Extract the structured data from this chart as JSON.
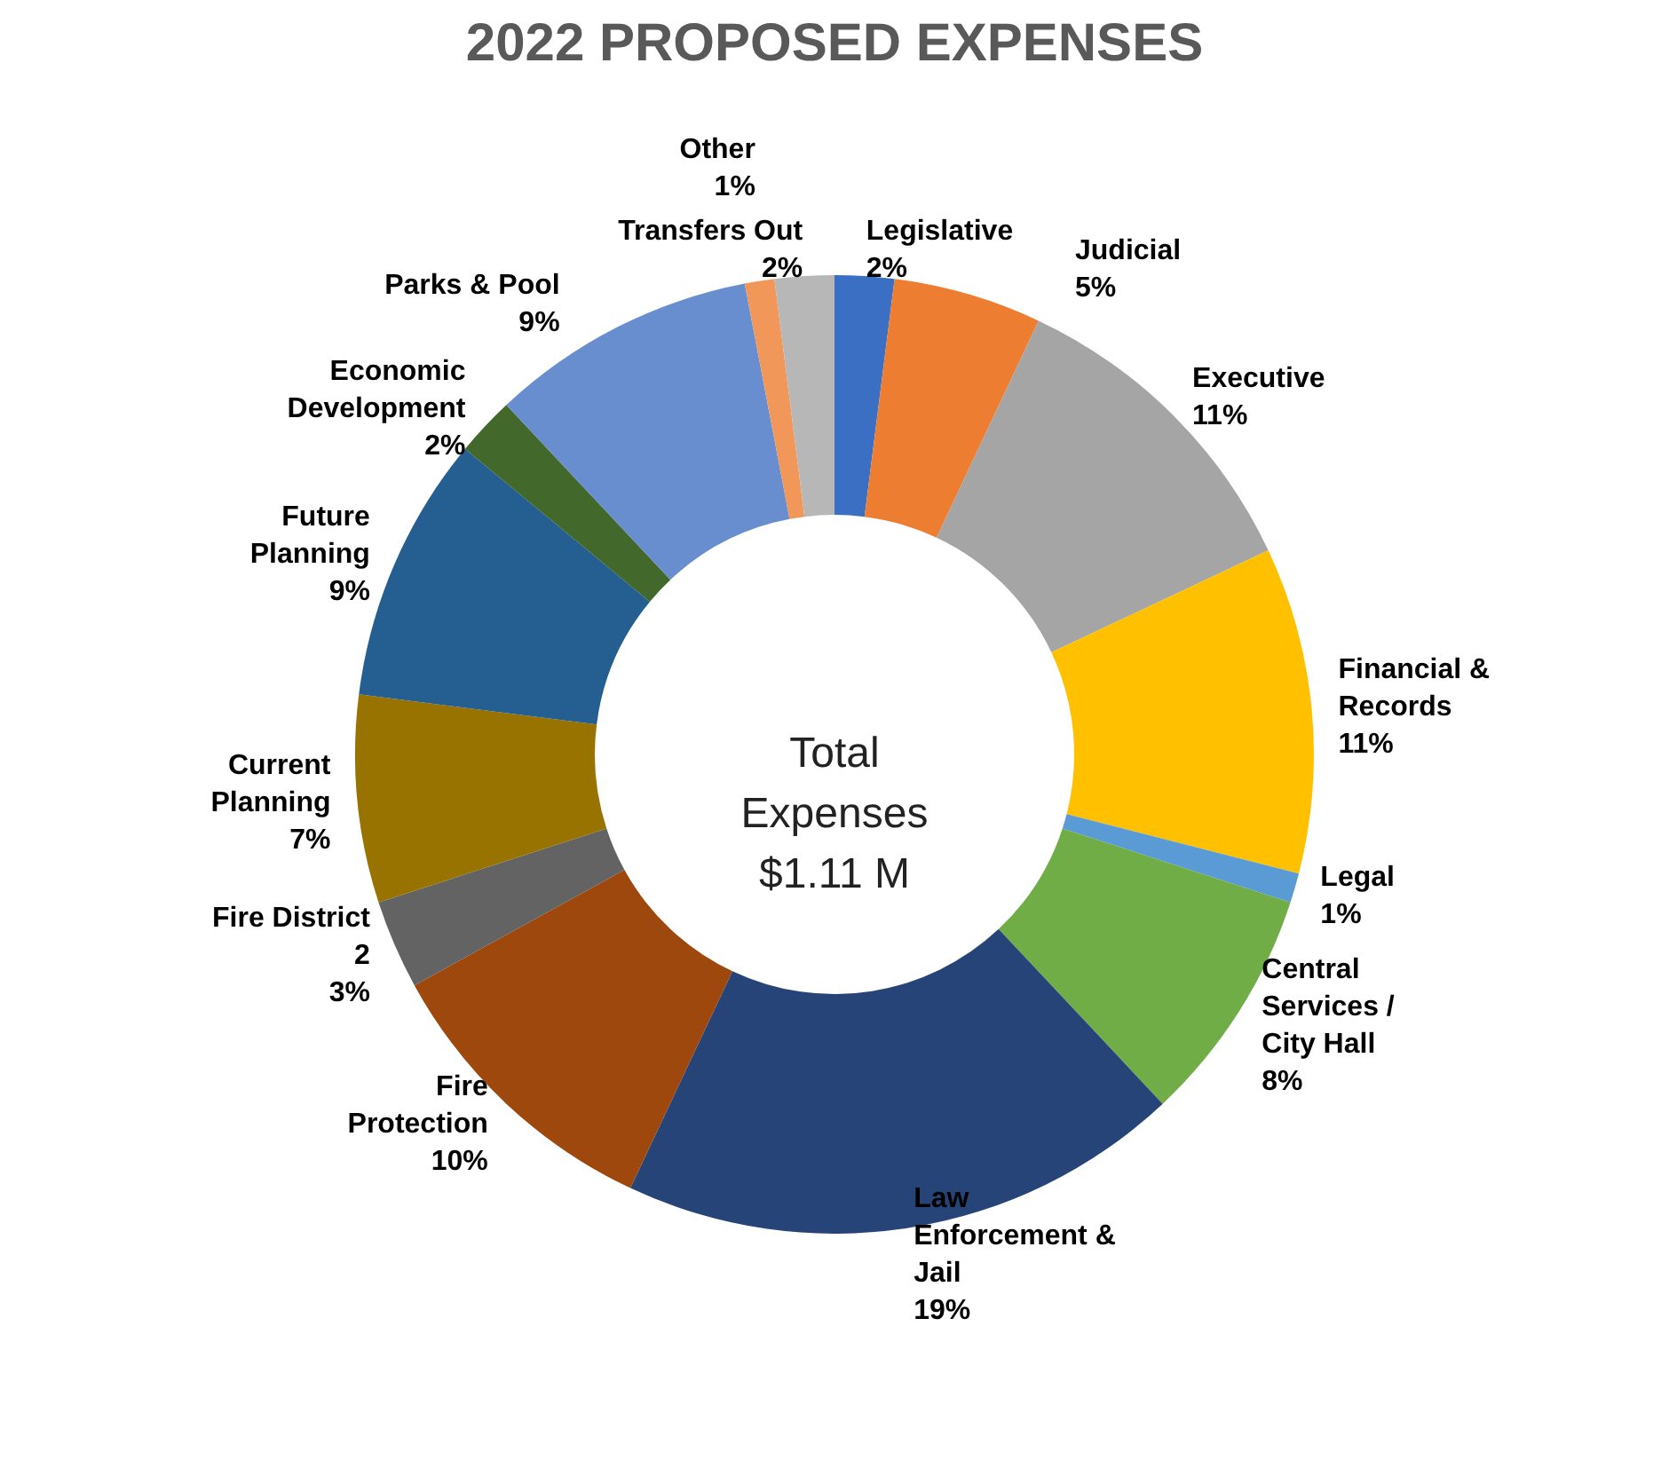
{
  "chart_data": {
    "type": "donut",
    "title": "2022 PROPOSED EXPENSES",
    "categories": [
      "Legislative",
      "Judicial",
      "Executive",
      "Financial & Records",
      "Legal",
      "Central Services / City Hall",
      "Law Enforcement & Jail",
      "Fire Protection",
      "Fire District 2",
      "Current Planning",
      "Future Planning",
      "Economic Development",
      "Parks & Pool",
      "Other",
      "Transfers Out"
    ],
    "values": [
      2,
      5,
      11,
      11,
      1,
      8,
      19,
      10,
      3,
      7,
      9,
      2,
      9,
      1,
      2
    ],
    "value_labels": [
      "2%",
      "5%",
      "11%",
      "11%",
      "1%",
      "8%",
      "19%",
      "10%",
      "3%",
      "7%",
      "9%",
      "2%",
      "9%",
      "1%",
      "2%"
    ],
    "colors": [
      "#3a6fc4",
      "#ed7d31",
      "#a5a5a5",
      "#ffc000",
      "#5b9bd5",
      "#70ad47",
      "#264478",
      "#9e480e",
      "#636363",
      "#997300",
      "#255e91",
      "#43682b",
      "#698ed0",
      "#f1975a",
      "#b7b7b7"
    ],
    "annotations": [
      "Total Expenses $1.11 M"
    ],
    "legend": false
  }
}
